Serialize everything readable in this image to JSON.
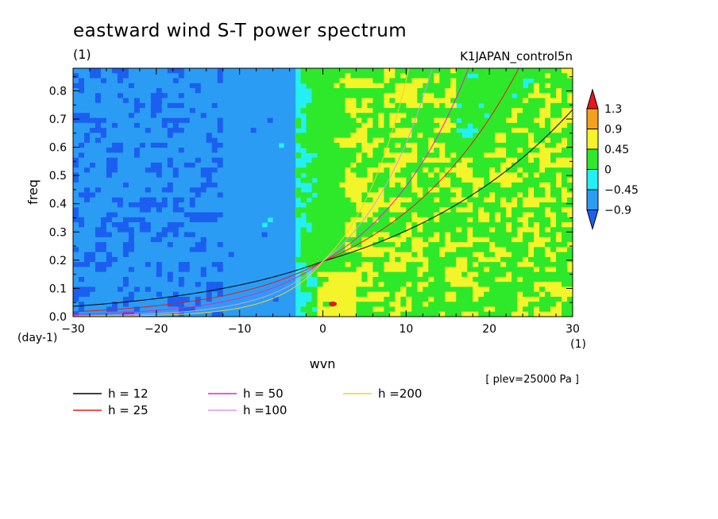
{
  "chart_data": {
    "type": "heatmap",
    "title": "eastward wind S-T power spectrum",
    "units_label": "(1)",
    "run_label": "K1JAPAN_control5n",
    "xlabel": "wvn",
    "ylabel": "freq",
    "x_unit_label": "(1)",
    "y_unit_label": "(day-1)",
    "level_label": "[ plev=25000 Pa ]",
    "xlim": [
      -30,
      30
    ],
    "ylim": [
      0,
      0.88
    ],
    "xticks": [
      -30,
      -20,
      -10,
      0,
      10,
      20,
      30
    ],
    "yticks": [
      0.0,
      0.1,
      0.2,
      0.3,
      0.4,
      0.5,
      0.6,
      0.7,
      0.8
    ],
    "ytick_labels": [
      "0.0",
      "0.1",
      "0.2",
      "0.3",
      "0.4",
      "0.5",
      "0.6",
      "0.7",
      "0.8"
    ],
    "colorbar": {
      "levels": [
        "1.3",
        "0.9",
        "0.45",
        "0",
        "−0.45",
        "−0.9"
      ],
      "colors": [
        "#e8151b",
        "#f5a11e",
        "#f4f42a",
        "#2ee92a",
        "#24f0f4",
        "#2b9cf4",
        "#1b5ff0"
      ]
    },
    "dispersion_curves": [
      {
        "name": "h = 12",
        "h": 12,
        "color": "#000000"
      },
      {
        "name": "h = 25",
        "h": 25,
        "color": "#e81b1b"
      },
      {
        "name": "h = 50",
        "h": 50,
        "color": "#e024c8"
      },
      {
        "name": "h =100",
        "h": 100,
        "color": "#d59ce9"
      },
      {
        "name": "h =200",
        "h": 200,
        "color": "#f1d32a"
      }
    ]
  }
}
